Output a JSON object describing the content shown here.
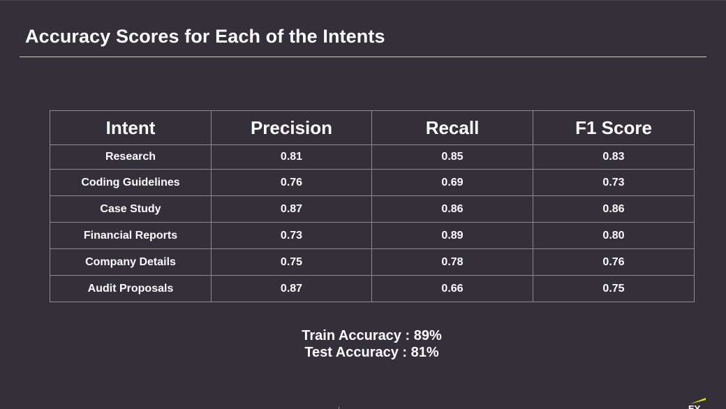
{
  "slide": {
    "title": "Accuracy Scores for Each of the Intents"
  },
  "table": {
    "headers": [
      "Intent",
      "Precision",
      "Recall",
      "F1 Score"
    ],
    "rows": [
      [
        "Research",
        "0.81",
        "0.85",
        "0.83"
      ],
      [
        "Coding Guidelines",
        "0.76",
        "0.69",
        "0.73"
      ],
      [
        "Case Study",
        "0.87",
        "0.86",
        "0.86"
      ],
      [
        "Financial Reports",
        "0.73",
        "0.89",
        "0.80"
      ],
      [
        "Company Details",
        "0.75",
        "0.78",
        "0.76"
      ],
      [
        "Audit Proposals",
        "0.87",
        "0.66",
        "0.75"
      ]
    ]
  },
  "summary": {
    "train": "Train Accuracy : 89%",
    "test": "Test Accuracy : 81%"
  },
  "logo": {
    "text": "EY",
    "icon": "ey-logo-icon",
    "accent_color": "#e3de2a"
  },
  "colors": {
    "background": "#33303a",
    "accent": "#e3de2a",
    "grid": "#8e8b93",
    "text": "#ffffff"
  }
}
